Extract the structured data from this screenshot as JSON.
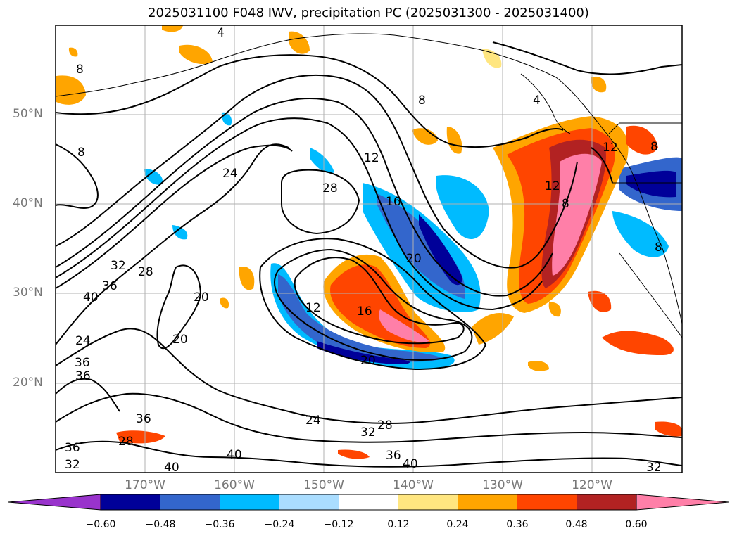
{
  "title": "2025031100 F048 IWV, precipitation PC (2025031300 - 2025031400)",
  "lat_labels": [
    "50°N",
    "40°N",
    "30°N",
    "20°N"
  ],
  "lon_labels": [
    "170°W",
    "160°W",
    "150°W",
    "140°W",
    "130°W",
    "120°W"
  ],
  "colorbar": {
    "ticks": [
      "−0.60",
      "−0.48",
      "−0.36",
      "−0.24",
      "−0.12",
      "0.12",
      "0.24",
      "0.36",
      "0.48",
      "0.60"
    ],
    "colors": [
      "#9933cc",
      "#000099",
      "#3366cc",
      "#00bbff",
      "#aaddff",
      "#ffffff",
      "#ffe680",
      "#ffa500",
      "#ff4500",
      "#b22222",
      "#ff7fa8"
    ]
  },
  "contour_labels": [
    "8",
    "8",
    "12",
    "16",
    "20",
    "28",
    "24",
    "32",
    "36",
    "28",
    "40",
    "36",
    "20",
    "20",
    "24",
    "36",
    "12",
    "16",
    "20",
    "36",
    "28",
    "24",
    "32",
    "28",
    "36",
    "40",
    "40",
    "32",
    "36",
    "32",
    "40",
    "12",
    "8",
    "4",
    "8",
    "8",
    "12",
    "8",
    "4"
  ]
}
